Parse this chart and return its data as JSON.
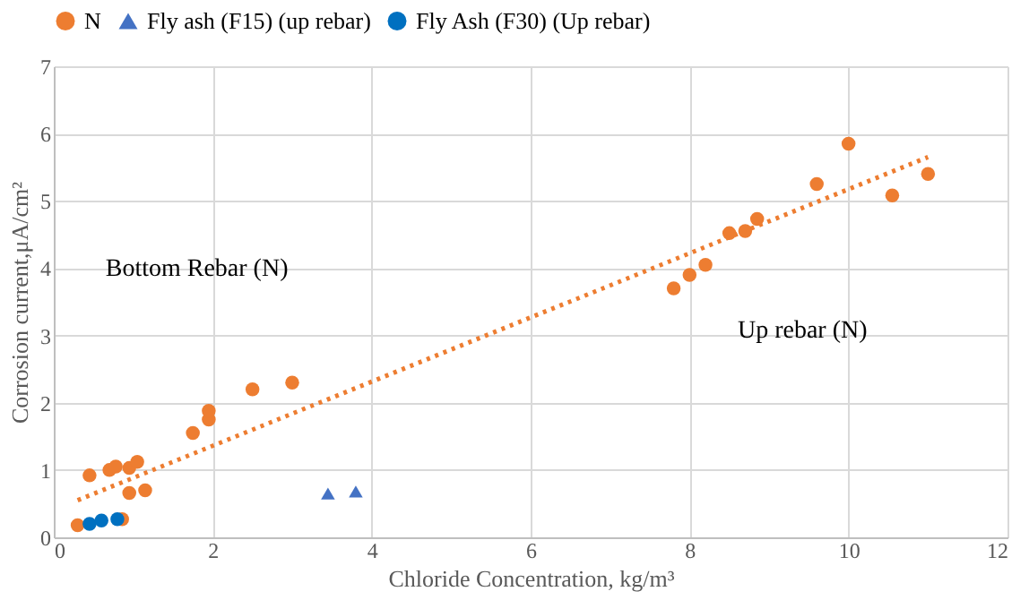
{
  "chart_data": {
    "type": "scatter",
    "xlabel": "Chloride Concentration, kg/m³",
    "ylabel": "Corrosion current,μA/cm²",
    "xlim": [
      0,
      12
    ],
    "ylim": [
      0,
      7
    ],
    "xticks": [
      0,
      2,
      4,
      6,
      8,
      10,
      12
    ],
    "yticks": [
      0,
      1,
      2,
      3,
      4,
      5,
      6,
      7
    ],
    "grid": true,
    "legend": "top",
    "series": [
      {
        "name": "N",
        "color": "#ed7d31",
        "marker": "circle",
        "x": [
          0.3,
          0.45,
          0.7,
          0.78,
          0.95,
          1.05,
          0.95,
          1.15,
          0.86,
          1.75,
          1.95,
          1.95,
          2.5,
          3.0,
          7.8,
          8.0,
          8.2,
          8.5,
          8.7,
          8.85,
          9.6,
          10.0,
          10.55,
          11.0
        ],
        "values": [
          0.18,
          0.92,
          1.0,
          1.05,
          1.03,
          1.12,
          0.66,
          0.7,
          0.27,
          1.55,
          1.75,
          1.88,
          2.2,
          2.3,
          3.7,
          3.9,
          4.05,
          4.52,
          4.55,
          4.73,
          5.25,
          5.85,
          5.08,
          5.4
        ]
      },
      {
        "name": "Fly ash (F15) (up rebar)",
        "color": "#4472c4",
        "marker": "triangle",
        "x": [
          3.45,
          3.8
        ],
        "values": [
          0.65,
          0.68
        ]
      },
      {
        "name": "Fly Ash (F30) (Up rebar)",
        "color": "#0070c0",
        "marker": "circle",
        "x": [
          0.45,
          0.6,
          0.8
        ],
        "values": [
          0.2,
          0.25,
          0.27
        ]
      },
      {
        "type": "line",
        "color": "#ed7d31",
        "line_style": "dotted",
        "x": [
          0.3,
          11.0
        ],
        "values": [
          0.55,
          5.65
        ]
      }
    ],
    "annotations": [
      "Bottom Rebar (N)",
      "Up rebar (N)"
    ]
  }
}
